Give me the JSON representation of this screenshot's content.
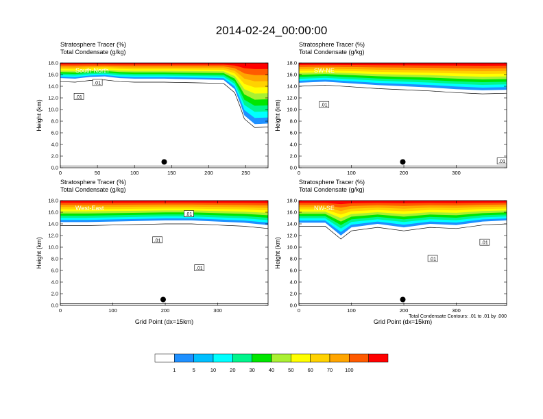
{
  "figure": {
    "title": "2014-02-24_00:00:00",
    "contour_note": "Total Condensate Contours: .01 to .01 by .000"
  },
  "chart_data": [
    {
      "type": "heatmap",
      "panel": "South-North",
      "header_line1": "Stratosphere Tracer   (%)",
      "header_line2": "Total Condensate   (g/kg)",
      "ylabel": "Height (km)",
      "xlabel": "",
      "xlim": [
        0,
        280
      ],
      "ylim": [
        0,
        18
      ],
      "xticks": [
        "0",
        "50",
        "100",
        "150",
        "200",
        "250"
      ],
      "xtick_values": [
        0,
        50,
        100,
        150,
        200,
        250
      ],
      "yticks": [
        "0.0",
        "2.0",
        "4.0",
        "6.0",
        "8.0",
        "10.0",
        "12.0",
        "14.0",
        "16.0",
        "18.0"
      ],
      "contour_labels": [
        {
          "text": ".01",
          "x": 50,
          "y": 14.6
        },
        {
          "text": ".01",
          "x": 25,
          "y": 12.2
        }
      ],
      "marker": {
        "x": 140,
        "y": 1.0
      },
      "tracer_profile": [
        [
          0,
          15.4
        ],
        [
          20,
          15.3
        ],
        [
          40,
          15.6
        ],
        [
          60,
          15.7
        ],
        [
          80,
          15.4
        ],
        [
          100,
          15.3
        ],
        [
          140,
          15.3
        ],
        [
          180,
          15.2
        ],
        [
          220,
          15.1
        ],
        [
          235,
          13.5
        ],
        [
          242,
          11.2
        ],
        [
          248,
          9.0
        ],
        [
          262,
          7.5
        ],
        [
          280,
          7.6
        ]
      ]
    },
    {
      "type": "heatmap",
      "panel": "SW-NE",
      "header_line1": "Stratosphere Tracer   (%)",
      "header_line2": "Total Condensate   (g/kg)",
      "ylabel": "Height (km)",
      "xlabel": "",
      "xlim": [
        0,
        396
      ],
      "ylim": [
        0,
        18
      ],
      "xticks": [
        "0",
        "100",
        "200",
        "300"
      ],
      "xtick_values": [
        0,
        100,
        200,
        300
      ],
      "yticks": [
        "0.0",
        "2.0",
        "4.0",
        "6.0",
        "8.0",
        "10.0",
        "12.0",
        "14.0",
        "16.0",
        "18.0"
      ],
      "contour_labels": [
        {
          "text": ".01",
          "x": 48,
          "y": 10.8
        },
        {
          "text": ".01",
          "x": 387,
          "y": 1.1
        }
      ],
      "marker": {
        "x": 198,
        "y": 1.0
      },
      "tracer_profile": [
        [
          0,
          14.6
        ],
        [
          50,
          14.8
        ],
        [
          100,
          14.5
        ],
        [
          150,
          14.2
        ],
        [
          200,
          14.0
        ],
        [
          250,
          13.8
        ],
        [
          300,
          13.5
        ],
        [
          350,
          13.3
        ],
        [
          396,
          13.4
        ]
      ]
    },
    {
      "type": "heatmap",
      "panel": "West-East",
      "header_line1": "Stratosphere Tracer   (%)",
      "header_line2": "Total Condensate   (g/kg)",
      "ylabel": "Height (km)",
      "xlabel": "Grid Point (dx=15km)",
      "xlim": [
        0,
        396
      ],
      "ylim": [
        0,
        18
      ],
      "xticks": [
        "0",
        "100",
        "200",
        "300"
      ],
      "xtick_values": [
        0,
        100,
        200,
        300
      ],
      "yticks": [
        "0.0",
        "2.0",
        "4.0",
        "6.0",
        "8.0",
        "10.0",
        "12.0",
        "14.0",
        "16.0",
        "18.0"
      ],
      "contour_labels": [
        {
          "text": ".01",
          "x": 185,
          "y": 11.2
        },
        {
          "text": ".01",
          "x": 265,
          "y": 6.4
        },
        {
          "text": ".01",
          "x": 245,
          "y": 15.7
        }
      ],
      "marker": {
        "x": 196,
        "y": 1.0
      },
      "tracer_profile": [
        [
          0,
          14.3
        ],
        [
          50,
          14.3
        ],
        [
          100,
          14.4
        ],
        [
          150,
          14.5
        ],
        [
          200,
          14.6
        ],
        [
          250,
          14.6
        ],
        [
          300,
          14.4
        ],
        [
          350,
          14.2
        ],
        [
          396,
          13.8
        ]
      ]
    },
    {
      "type": "heatmap",
      "panel": "NW-SE",
      "header_line1": "Stratosphere Tracer   (%)",
      "header_line2": "Total Condensate   (g/kg)",
      "ylabel": "Height (km)",
      "xlabel": "Grid Point (dx=15km)",
      "xlim": [
        0,
        396
      ],
      "ylim": [
        0,
        18
      ],
      "xticks": [
        "0",
        "100",
        "200",
        "300"
      ],
      "xtick_values": [
        0,
        100,
        200,
        300
      ],
      "yticks": [
        "0.0",
        "2.0",
        "4.0",
        "6.0",
        "8.0",
        "10.0",
        "12.0",
        "14.0",
        "16.0",
        "18.0"
      ],
      "contour_labels": [
        {
          "text": ".01",
          "x": 255,
          "y": 8.0
        },
        {
          "text": ".01",
          "x": 354,
          "y": 10.8
        }
      ],
      "marker": {
        "x": 198,
        "y": 1.0
      },
      "tracer_profile": [
        [
          0,
          14.2
        ],
        [
          50,
          14.2
        ],
        [
          80,
          12.0
        ],
        [
          100,
          13.4
        ],
        [
          150,
          14.0
        ],
        [
          200,
          13.4
        ],
        [
          250,
          14.0
        ],
        [
          300,
          13.8
        ],
        [
          350,
          14.4
        ],
        [
          396,
          14.6
        ]
      ]
    }
  ],
  "colorbar": {
    "labels": [
      "1",
      "5",
      "10",
      "20",
      "30",
      "40",
      "50",
      "60",
      "70",
      "100"
    ],
    "colors": [
      "#ffffff",
      "#1e90ff",
      "#00bfff",
      "#00ffff",
      "#00f58c",
      "#00e600",
      "#aaf032",
      "#ffff00",
      "#ffd200",
      "#ffa500",
      "#ff5a00",
      "#ff0000"
    ]
  }
}
